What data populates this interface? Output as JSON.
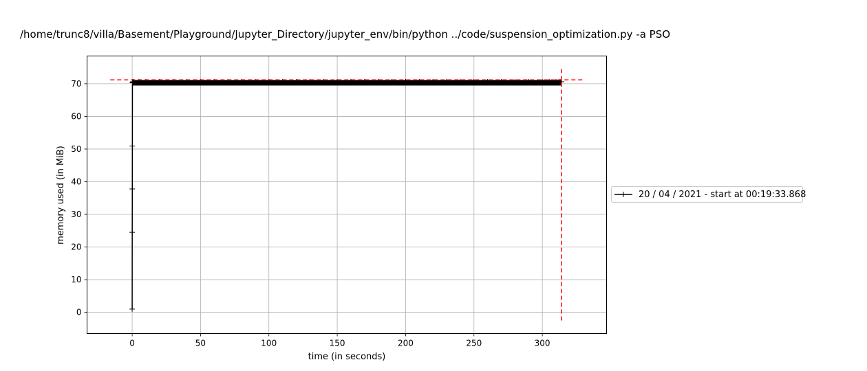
{
  "chart_data": {
    "type": "line",
    "title": "/home/trunc8/villa/Basement/Playground/Jupyter_Directory/jupyter_env/bin/python ../code/suspension_optimization.py -a PSO",
    "xlabel": "time (in seconds)",
    "ylabel": "memory used (in MiB)",
    "xlim": [
      -33,
      347
    ],
    "ylim": [
      -6.5,
      78.5
    ],
    "x_ticks": [
      0,
      50,
      100,
      150,
      200,
      250,
      300
    ],
    "y_ticks": [
      0,
      10,
      20,
      30,
      40,
      50,
      60,
      70
    ],
    "grid": true,
    "legend_position": "outside right",
    "series": [
      {
        "name": "20 / 04 / 2021 - start at 00:19:33.868",
        "color": "#000000",
        "marker": "plus",
        "x": [
          0.0,
          0.05,
          0.1,
          0.15,
          0.2,
          0.3,
          0.5,
          1,
          5,
          10,
          20,
          30,
          40,
          50,
          60,
          70,
          80,
          90,
          100,
          110,
          120,
          130,
          140,
          150,
          160,
          170,
          180,
          190,
          200,
          210,
          220,
          230,
          240,
          250,
          260,
          270,
          280,
          290,
          300,
          305,
          310,
          313,
          314
        ],
        "y": [
          1.0,
          24.5,
          37.8,
          50.9,
          70.3,
          70.5,
          70.6,
          70.6,
          70.6,
          70.6,
          70.6,
          70.6,
          70.6,
          70.6,
          70.6,
          70.6,
          70.6,
          70.6,
          70.6,
          70.6,
          70.6,
          70.6,
          70.6,
          70.6,
          70.6,
          70.6,
          70.6,
          70.6,
          70.6,
          70.6,
          70.6,
          70.6,
          70.6,
          70.6,
          70.6,
          70.6,
          70.6,
          70.6,
          70.6,
          70.6,
          70.6,
          70.6,
          70.6
        ]
      }
    ],
    "annotations": [
      {
        "type": "hline",
        "y": 71.2,
        "x_range": [
          -16,
          330
        ],
        "color": "#ff0000",
        "style": "dashed"
      },
      {
        "type": "vline",
        "x": 314,
        "y_range": [
          -2.5,
          74.8
        ],
        "color": "#ff0000",
        "style": "dashed"
      }
    ]
  }
}
